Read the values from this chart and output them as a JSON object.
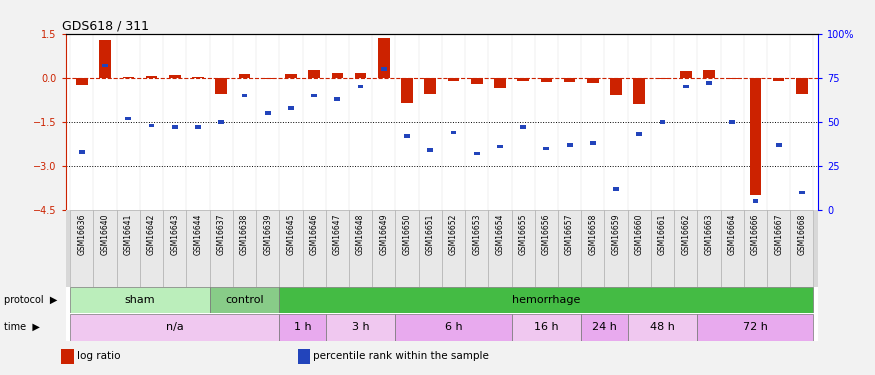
{
  "title": "GDS618 / 311",
  "samples": [
    "GSM16636",
    "GSM16640",
    "GSM16641",
    "GSM16642",
    "GSM16643",
    "GSM16644",
    "GSM16637",
    "GSM16638",
    "GSM16639",
    "GSM16645",
    "GSM16646",
    "GSM16647",
    "GSM16648",
    "GSM16649",
    "GSM16650",
    "GSM16651",
    "GSM16652",
    "GSM16653",
    "GSM16654",
    "GSM16655",
    "GSM16656",
    "GSM16657",
    "GSM16658",
    "GSM16659",
    "GSM16660",
    "GSM16661",
    "GSM16662",
    "GSM16663",
    "GSM16664",
    "GSM16666",
    "GSM16667",
    "GSM16668"
  ],
  "log_ratio": [
    -0.25,
    1.3,
    0.02,
    0.05,
    0.1,
    0.02,
    -0.55,
    0.12,
    -0.05,
    0.12,
    0.25,
    0.15,
    0.18,
    1.35,
    -0.85,
    -0.55,
    -0.12,
    -0.2,
    -0.35,
    -0.12,
    -0.15,
    -0.15,
    -0.18,
    -0.6,
    -0.9,
    -0.05,
    0.22,
    0.28,
    -0.05,
    -4.0,
    -0.12,
    -0.55
  ],
  "percentile_rank": [
    33,
    82,
    52,
    48,
    47,
    47,
    50,
    65,
    55,
    58,
    65,
    63,
    70,
    80,
    42,
    34,
    44,
    32,
    36,
    47,
    35,
    37,
    38,
    12,
    43,
    50,
    70,
    72,
    50,
    5,
    37,
    10
  ],
  "protocol_groups": [
    {
      "label": "sham",
      "start": 0,
      "end": 5,
      "color": "#bbeebb"
    },
    {
      "label": "control",
      "start": 6,
      "end": 8,
      "color": "#88cc88"
    },
    {
      "label": "hemorrhage",
      "start": 9,
      "end": 31,
      "color": "#44bb44"
    }
  ],
  "time_groups": [
    {
      "label": "n/a",
      "start": 0,
      "end": 8,
      "color": "#f0c8f0"
    },
    {
      "label": "1 h",
      "start": 9,
      "end": 10,
      "color": "#e8aaee"
    },
    {
      "label": "3 h",
      "start": 11,
      "end": 13,
      "color": "#f0c8f0"
    },
    {
      "label": "6 h",
      "start": 14,
      "end": 18,
      "color": "#e8aaee"
    },
    {
      "label": "16 h",
      "start": 19,
      "end": 21,
      "color": "#f0c8f0"
    },
    {
      "label": "24 h",
      "start": 22,
      "end": 23,
      "color": "#e8aaee"
    },
    {
      "label": "48 h",
      "start": 24,
      "end": 26,
      "color": "#f0c8f0"
    },
    {
      "label": "72 h",
      "start": 27,
      "end": 31,
      "color": "#e8aaee"
    }
  ],
  "ylim_left": [
    -4.5,
    1.5
  ],
  "ylim_right": [
    0,
    100
  ],
  "yticks_left": [
    1.5,
    0.0,
    -1.5,
    -3.0,
    -4.5
  ],
  "yticks_right": [
    100,
    75,
    50,
    25,
    0
  ],
  "ytick_labels_right": [
    "100%",
    "75",
    "50",
    "25",
    "0"
  ],
  "hlines": [
    -1.5,
    -3.0
  ],
  "bar_color_red": "#cc2200",
  "bar_color_blue": "#2244bb",
  "bg_color": "#f2f2f2",
  "axis_bg": "#ffffff",
  "legend_items": [
    {
      "color": "#cc2200",
      "label": "log ratio"
    },
    {
      "color": "#2244bb",
      "label": "percentile rank within the sample"
    }
  ]
}
